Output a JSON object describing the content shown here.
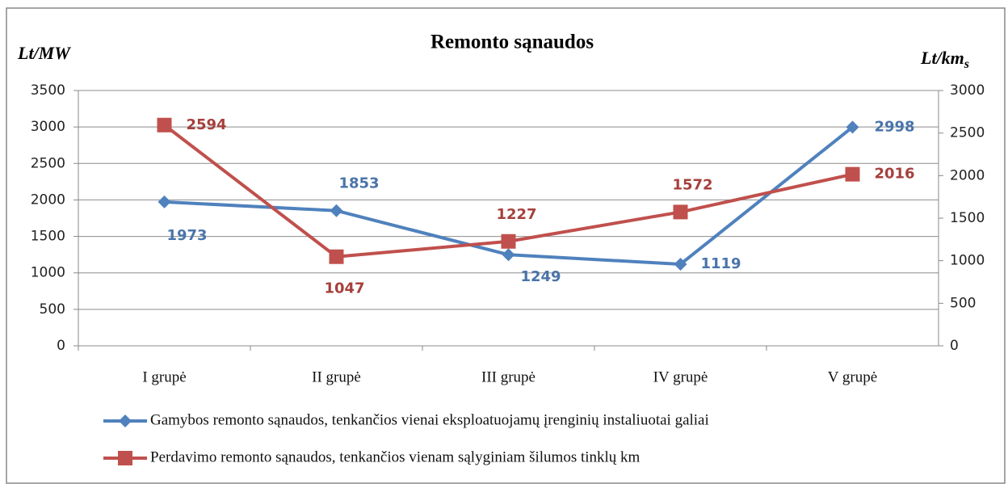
{
  "chart_data": {
    "type": "line",
    "title": "Remonto sąnaudos",
    "y_label": "Lt/MW",
    "y2_label": {
      "text": "Lt/km",
      "subscript": "s"
    },
    "categories": [
      "I grupė",
      "II grupė",
      "III grupė",
      "IV grupė",
      "V grupė"
    ],
    "series": [
      {
        "name": "Gamybos remonto sąnaudos, tenkančios vienai eksploatuojamų įrenginių instaliuotai galiai",
        "color": "#4f81bd",
        "label_color": "#4a74aa",
        "marker": "diamond",
        "values": [
          1973,
          1853,
          1249,
          1119,
          2998
        ]
      },
      {
        "name": "Perdavimo remonto sąnaudos, tenkančios vienam sąlyginiam šilumos  tinklų km",
        "color": "#c0504d",
        "label_color": "#a6403c",
        "marker": "square",
        "axis": "y2",
        "values": [
          2594,
          1047,
          1227,
          1572,
          2016
        ]
      }
    ],
    "ylim": [
      0,
      3500
    ],
    "yticks": [
      0,
      500,
      1000,
      1500,
      2000,
      2500,
      3000,
      3500
    ],
    "y2lim": [
      0,
      3000
    ],
    "y2ticks": [
      0,
      500,
      1000,
      1500,
      2000,
      2500,
      3000
    ],
    "grid": true,
    "legend": "bottom"
  }
}
